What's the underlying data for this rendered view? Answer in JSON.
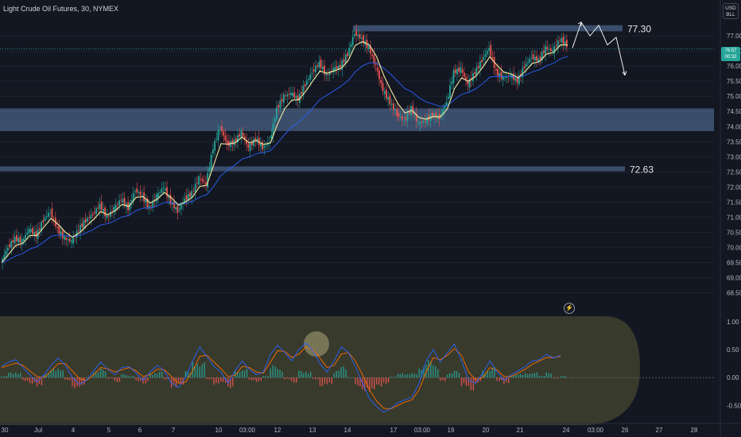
{
  "header": {
    "title": "Light Crude Oil Futures, 30, NYMEX",
    "currency_line1": "USD",
    "currency_line2": "BLL",
    "last_price": "76.57",
    "last_price_sub": "00:32"
  },
  "indicator_icon": "lightning-icon",
  "colors": {
    "background": "#131722",
    "zone": "#5b7aa8",
    "up": "#26a69a",
    "down": "#ef5350",
    "fast_ma": "#f5e9a0",
    "slow_ma": "#2962ff",
    "macd_line": "#2962ff",
    "signal_line": "#ff6d00",
    "oscillator_bg": "#3d3f2e"
  },
  "chart_data": [
    {
      "type": "candlestick",
      "y_range": [
        68.25,
        77.45
      ],
      "y_ticks": [
        "77.00",
        "76.50",
        "76.00",
        "75.50",
        "75.00",
        "74.50",
        "74.00",
        "73.50",
        "73.00",
        "72.50",
        "72.00",
        "71.50",
        "71.00",
        "70.50",
        "70.00",
        "69.50",
        "69.00",
        "68.50"
      ],
      "x_ticks": [
        "30",
        "Jul",
        "4",
        "5",
        "6",
        "7",
        "10",
        "03:00",
        "12",
        "13",
        "14",
        "17",
        "03:00",
        "19",
        "20",
        "21",
        "24",
        "03:00",
        "26",
        "27",
        "28"
      ],
      "zones": [
        {
          "label": "77.30",
          "from": 77.15,
          "to": 77.35
        },
        {
          "label": "",
          "from": 73.85,
          "to": 74.6
        },
        {
          "label": "72.63",
          "from": 72.52,
          "to": 72.68
        }
      ],
      "close_path": [
        69.5,
        70.0,
        70.3,
        70.2,
        70.6,
        70.4,
        70.9,
        71.2,
        70.6,
        70.3,
        70.2,
        70.6,
        70.9,
        71.1,
        71.4,
        71.0,
        71.3,
        71.6,
        71.3,
        71.9,
        71.7,
        71.3,
        71.7,
        72.0,
        71.5,
        71.2,
        71.6,
        71.8,
        72.3,
        72.1,
        73.3,
        74.0,
        73.4,
        73.5,
        73.8,
        73.3,
        73.6,
        73.3,
        73.5,
        74.6,
        75.0,
        75.1,
        74.9,
        75.4,
        75.8,
        76.1,
        75.7,
        75.9,
        76.0,
        76.4,
        77.1,
        76.9,
        76.6,
        76.0,
        75.2,
        74.8,
        74.4,
        74.2,
        74.6,
        74.1,
        74.2,
        74.4,
        74.3,
        74.8,
        75.8,
        75.9,
        75.4,
        75.8,
        76.2,
        76.6,
        75.8,
        75.6,
        75.7,
        75.5,
        76.0,
        76.3,
        76.2,
        76.6,
        76.5,
        76.9,
        76.7
      ],
      "projection": [
        {
          "x": 0,
          "y": 76.6
        },
        {
          "x": 1,
          "y": 77.45
        },
        {
          "x": 2,
          "y": 77.0
        },
        {
          "x": 3,
          "y": 77.35
        },
        {
          "x": 4,
          "y": 76.7
        },
        {
          "x": 5,
          "y": 76.95
        },
        {
          "x": 6,
          "y": 75.7
        }
      ]
    },
    {
      "type": "oscillator",
      "y_range": [
        -0.78,
        1.1
      ],
      "y_ticks": [
        "1.00",
        "0.50",
        "0.00",
        "-0.50"
      ],
      "macd": [
        0.2,
        0.28,
        0.32,
        0.18,
        0.05,
        -0.08,
        0.05,
        0.22,
        0.35,
        0.22,
        0.0,
        -0.12,
        -0.05,
        0.12,
        0.28,
        0.15,
        0.05,
        0.18,
        0.2,
        0.08,
        -0.05,
        0.1,
        0.22,
        0.12,
        -0.1,
        -0.18,
        0.0,
        0.3,
        0.55,
        0.38,
        0.2,
        0.1,
        -0.1,
        0.12,
        0.3,
        0.15,
        0.05,
        0.1,
        0.42,
        0.58,
        0.45,
        0.3,
        0.5,
        0.62,
        0.48,
        0.25,
        0.1,
        0.3,
        0.55,
        0.45,
        0.2,
        -0.1,
        -0.38,
        -0.52,
        -0.62,
        -0.55,
        -0.45,
        -0.4,
        -0.35,
        -0.1,
        0.3,
        0.5,
        0.28,
        0.45,
        0.6,
        0.3,
        -0.05,
        -0.1,
        0.08,
        0.3,
        0.1,
        -0.05,
        0.05,
        0.12,
        0.2,
        0.3,
        0.32,
        0.42,
        0.35,
        0.4
      ],
      "signal": [
        0.18,
        0.22,
        0.26,
        0.22,
        0.12,
        0.02,
        0.0,
        0.12,
        0.25,
        0.25,
        0.12,
        -0.02,
        -0.05,
        0.05,
        0.18,
        0.16,
        0.1,
        0.14,
        0.18,
        0.12,
        0.02,
        0.05,
        0.15,
        0.14,
        0.02,
        -0.1,
        -0.08,
        0.12,
        0.38,
        0.4,
        0.28,
        0.16,
        0.02,
        0.04,
        0.2,
        0.18,
        0.1,
        0.08,
        0.28,
        0.48,
        0.47,
        0.36,
        0.42,
        0.55,
        0.5,
        0.35,
        0.18,
        0.22,
        0.42,
        0.45,
        0.3,
        0.05,
        -0.22,
        -0.42,
        -0.55,
        -0.56,
        -0.5,
        -0.44,
        -0.4,
        -0.22,
        0.1,
        0.36,
        0.32,
        0.4,
        0.52,
        0.4,
        0.1,
        -0.04,
        0.0,
        0.18,
        0.14,
        0.02,
        0.02,
        0.08,
        0.15,
        0.24,
        0.3,
        0.36,
        0.36,
        0.38
      ]
    }
  ]
}
